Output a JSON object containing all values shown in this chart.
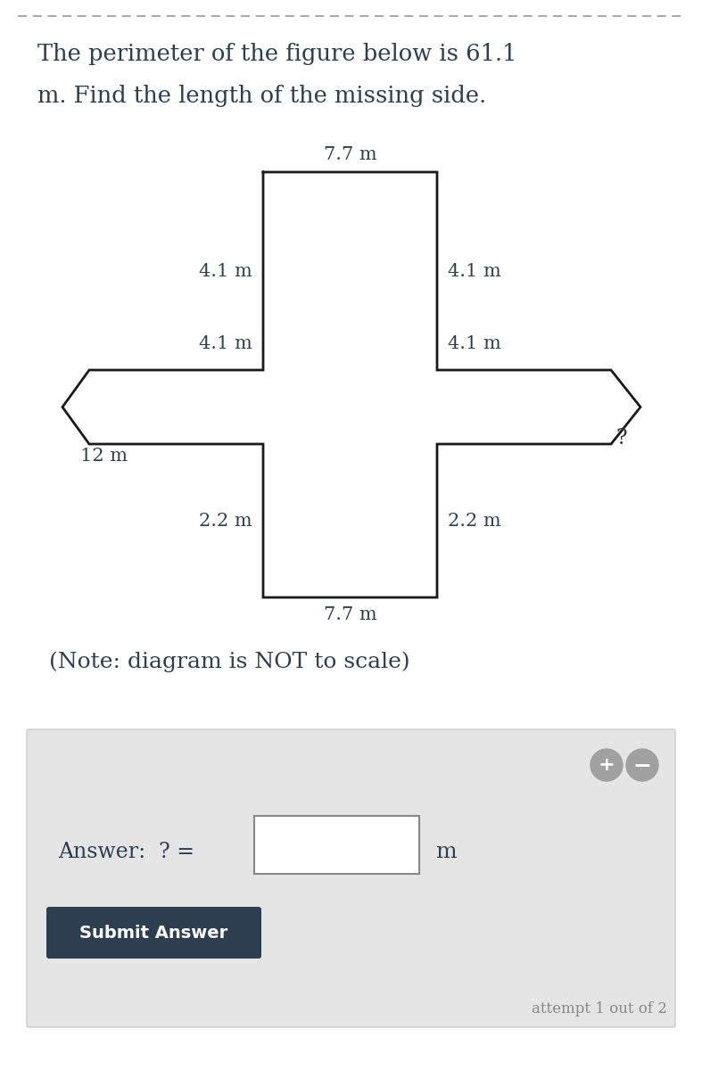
{
  "title_line1": "The perimeter of the figure below is 61.1",
  "title_line2": "m. Find the length of the missing side.",
  "note_text": "(Note: diagram is NOT to scale)",
  "answer_label": "Answer:  ? =",
  "answer_unit": "m",
  "submit_text": "Submit Answer",
  "attempt_text": "attempt 1 out of 2",
  "labels": {
    "top": "7.7 m",
    "bottom": "7.7 m",
    "left_upper": "4.1 m",
    "left_lower": "4.1 m",
    "right_upper": "4.1 m",
    "right_lower": "4.1 m",
    "left_diag": "12 m",
    "right_diag": "?",
    "left_vert_lower": "2.2 m",
    "right_vert_lower": "2.2 m"
  },
  "bg_color": "#ffffff",
  "shape_color": "#1a1a1a",
  "text_color": "#2c3e50",
  "dash_color": "#999999",
  "answer_box_bg": "#e5e5e5",
  "submit_btn_color": "#2d3e50",
  "submit_text_color": "#ffffff",
  "btn_color": "#a0a0a0"
}
